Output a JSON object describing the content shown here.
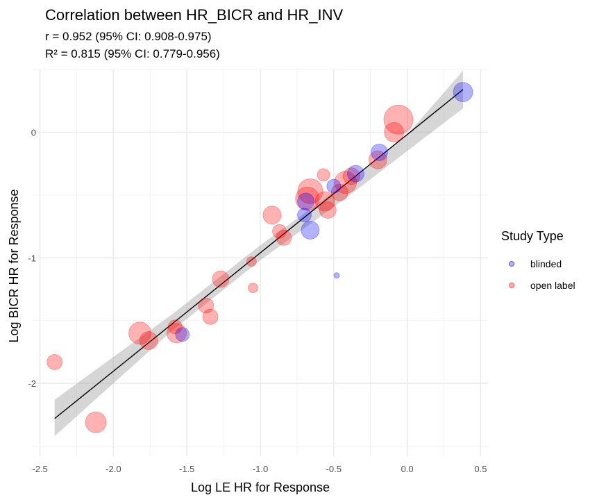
{
  "chart_data": {
    "type": "scatter",
    "title": "Correlation between HR_BICR and HR_INV",
    "subtitle_lines": [
      "r = 0.952 (95% CI: 0.908-0.975)",
      "R² = 0.815 (95% CI: 0.779-0.956)"
    ],
    "xlabel": "Log LE HR for Response",
    "ylabel": "Log BICR HR for Response",
    "xlim": [
      -2.55,
      0.55
    ],
    "ylim": [
      -2.58,
      0.5
    ],
    "x_ticks": [
      -2.5,
      -2.0,
      -1.5,
      -1.0,
      -0.5,
      0.0,
      0.5
    ],
    "x_tick_labels": [
      "-2.5",
      "-2.0",
      "-1.5",
      "-1.0",
      "-0.5",
      "0.0",
      "0.5"
    ],
    "y_ticks": [
      -2,
      -1,
      0
    ],
    "y_tick_labels": [
      "-2",
      "-1",
      "0"
    ],
    "grid": true,
    "legend": {
      "title": "Study Type",
      "placement": "right",
      "entries": [
        {
          "label": "blinded",
          "color": "#0000ff"
        },
        {
          "label": "open label",
          "color": "#ff0000"
        }
      ]
    },
    "fit_line": {
      "x": [
        -2.4,
        0.38
      ],
      "y": [
        -2.28,
        0.34
      ]
    },
    "confidence_band": {
      "x": [
        -2.4,
        -1.6,
        -1.0,
        -0.6,
        -0.3,
        0.0,
        0.38
      ],
      "lower": [
        -2.42,
        -1.58,
        -1.02,
        -0.68,
        -0.42,
        -0.15,
        0.19
      ],
      "upper": [
        -2.13,
        -1.45,
        -0.9,
        -0.56,
        -0.31,
        -0.02,
        0.49
      ]
    },
    "series": [
      {
        "name": "blinded",
        "color": "#0000ff",
        "points": [
          {
            "x": 0.38,
            "y": 0.32,
            "size": 14
          },
          {
            "x": -0.19,
            "y": -0.16,
            "size": 12
          },
          {
            "x": -0.35,
            "y": -0.33,
            "size": 12
          },
          {
            "x": -0.5,
            "y": -0.43,
            "size": 10
          },
          {
            "x": -0.69,
            "y": -0.55,
            "size": 12
          },
          {
            "x": -0.7,
            "y": -0.66,
            "size": 10
          },
          {
            "x": -0.66,
            "y": -0.78,
            "size": 13
          },
          {
            "x": -0.48,
            "y": -1.14,
            "size": 4
          },
          {
            "x": -1.53,
            "y": -1.61,
            "size": 10
          }
        ]
      },
      {
        "name": "open label",
        "color": "#ff0000",
        "points": [
          {
            "x": -0.06,
            "y": 0.1,
            "size": 21
          },
          {
            "x": -0.09,
            "y": 0.0,
            "size": 14
          },
          {
            "x": -0.2,
            "y": -0.22,
            "size": 13
          },
          {
            "x": -0.38,
            "y": -0.35,
            "size": 12
          },
          {
            "x": -0.42,
            "y": -0.4,
            "size": 16
          },
          {
            "x": -0.46,
            "y": -0.48,
            "size": 12
          },
          {
            "x": -0.57,
            "y": -0.34,
            "size": 9
          },
          {
            "x": -0.66,
            "y": -0.47,
            "size": 18
          },
          {
            "x": -0.68,
            "y": -0.53,
            "size": 17
          },
          {
            "x": -0.56,
            "y": -0.55,
            "size": 14
          },
          {
            "x": -0.54,
            "y": -0.62,
            "size": 12
          },
          {
            "x": -0.92,
            "y": -0.66,
            "size": 13
          },
          {
            "x": -0.87,
            "y": -0.79,
            "size": 10
          },
          {
            "x": -0.84,
            "y": -0.84,
            "size": 11
          },
          {
            "x": -1.06,
            "y": -1.03,
            "size": 7
          },
          {
            "x": -1.05,
            "y": -1.24,
            "size": 7
          },
          {
            "x": -1.27,
            "y": -1.17,
            "size": 12
          },
          {
            "x": -1.37,
            "y": -1.38,
            "size": 11
          },
          {
            "x": -1.34,
            "y": -1.47,
            "size": 11
          },
          {
            "x": -1.58,
            "y": -1.55,
            "size": 10
          },
          {
            "x": -1.57,
            "y": -1.6,
            "size": 14
          },
          {
            "x": -1.82,
            "y": -1.6,
            "size": 16
          },
          {
            "x": -1.76,
            "y": -1.66,
            "size": 13
          },
          {
            "x": -2.4,
            "y": -1.83,
            "size": 11
          },
          {
            "x": -2.12,
            "y": -2.31,
            "size": 15
          }
        ]
      }
    ]
  }
}
